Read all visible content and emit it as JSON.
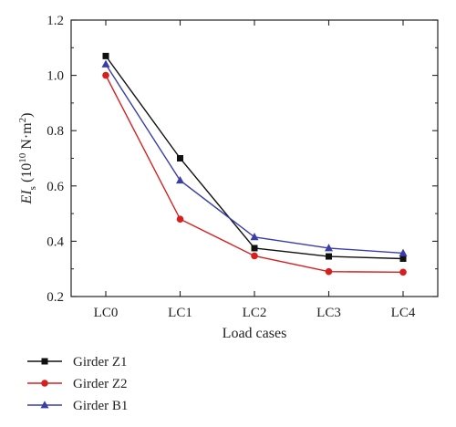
{
  "chart_data": {
    "type": "line",
    "categories": [
      "LC0",
      "LC1",
      "LC2",
      "LC3",
      "LC4"
    ],
    "xlabel": "Load cases",
    "ylabel": {
      "base": "EI",
      "sub": "s",
      "unit_open": " (10",
      "unit_exp": "10",
      "unit_mid": " N·m",
      "unit_sq": "2",
      "unit_close": ")"
    },
    "ylim": [
      0.2,
      1.2
    ],
    "yticks": [
      "0.2",
      "0.4",
      "0.6",
      "0.8",
      "1.0",
      "1.2"
    ],
    "grid": false,
    "legend_position": "bottom-left, below chart",
    "series": [
      {
        "name": "Girder Z1",
        "values": [
          1.07,
          0.7,
          0.375,
          0.345,
          0.337
        ],
        "color": "#111111",
        "marker": "square"
      },
      {
        "name": "Girder Z2",
        "values": [
          1.0,
          0.48,
          0.347,
          0.29,
          0.288
        ],
        "color": "#d62020",
        "marker": "circle"
      },
      {
        "name": "Girder B1",
        "values": [
          1.04,
          0.62,
          0.415,
          0.375,
          0.357
        ],
        "color": "#3a3fa8",
        "marker": "triangle"
      }
    ]
  }
}
